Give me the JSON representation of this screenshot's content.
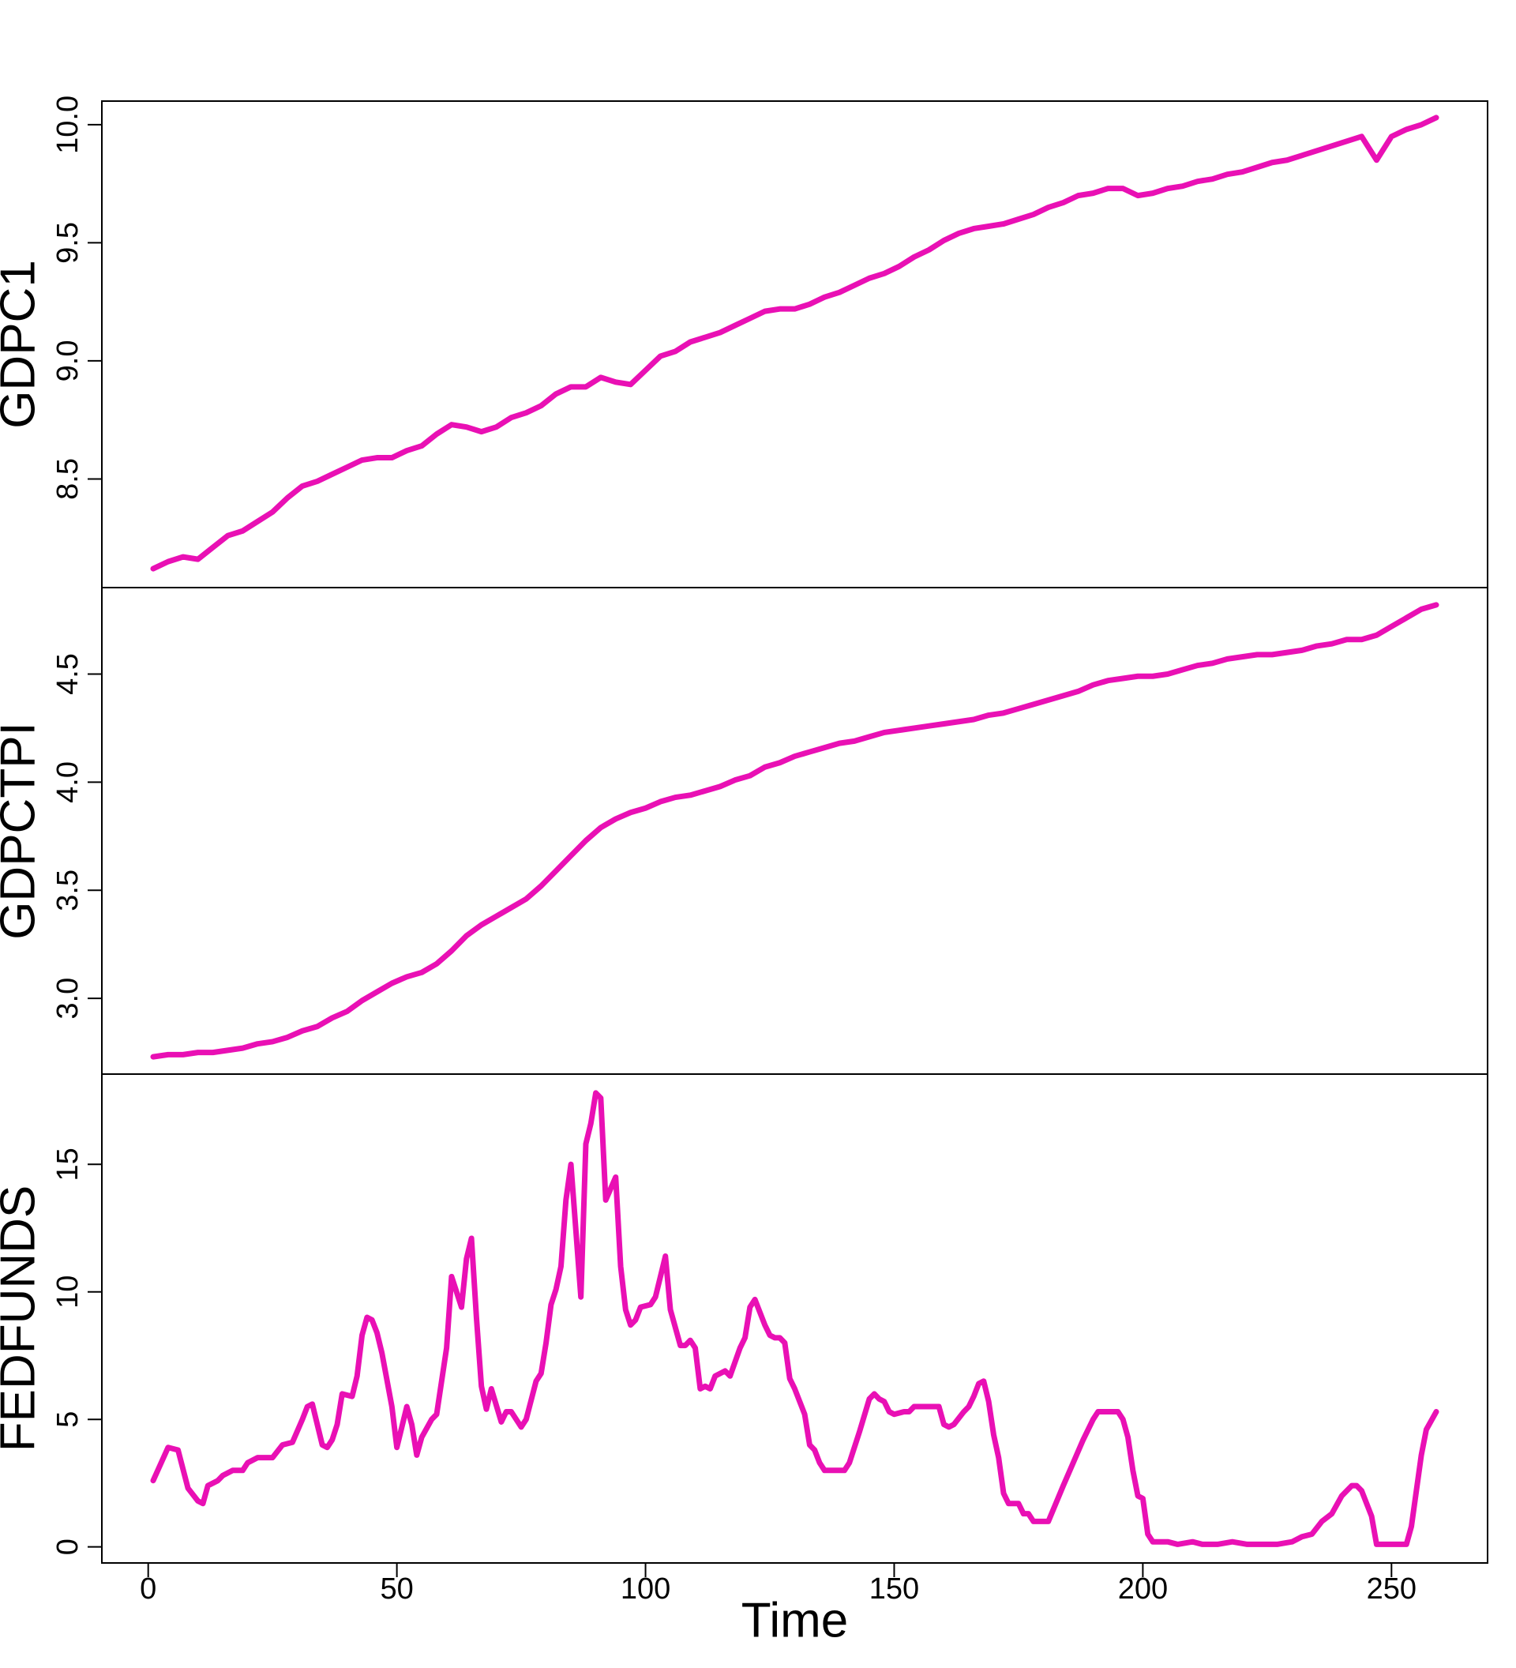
{
  "chart_data": [
    {
      "type": "line",
      "ylabel": "GDPC1",
      "color": "#e910b4",
      "xlim": [
        -9.32,
        269.32
      ],
      "ylim": [
        8.04,
        10.1
      ],
      "yticks": [
        8.5,
        {
          "value": 9.0,
          "label": "9.0"
        },
        9.5,
        {
          "value": 10.0,
          "label": "10.0"
        }
      ],
      "x": [
        1,
        4,
        7,
        10,
        13,
        16,
        19,
        22,
        25,
        28,
        31,
        34,
        37,
        40,
        43,
        46,
        49,
        52,
        55,
        58,
        61,
        64,
        67,
        70,
        73,
        76,
        79,
        82,
        85,
        88,
        91,
        94,
        97,
        100,
        103,
        106,
        109,
        112,
        115,
        118,
        121,
        124,
        127,
        130,
        133,
        136,
        139,
        142,
        145,
        148,
        151,
        154,
        157,
        160,
        163,
        166,
        169,
        172,
        175,
        178,
        181,
        184,
        187,
        190,
        193,
        196,
        199,
        202,
        205,
        208,
        211,
        214,
        217,
        220,
        223,
        226,
        229,
        232,
        235,
        238,
        241,
        244,
        247,
        250,
        253,
        256,
        259
      ],
      "values": [
        8.12,
        8.15,
        8.17,
        8.16,
        8.21,
        8.26,
        8.28,
        8.32,
        8.36,
        8.42,
        8.47,
        8.49,
        8.52,
        8.55,
        8.58,
        8.59,
        8.59,
        8.62,
        8.64,
        8.69,
        8.73,
        8.72,
        8.7,
        8.72,
        8.76,
        8.78,
        8.81,
        8.86,
        8.89,
        8.89,
        8.93,
        8.91,
        8.9,
        8.96,
        9.02,
        9.04,
        9.08,
        9.1,
        9.12,
        9.15,
        9.18,
        9.21,
        9.22,
        9.22,
        9.24,
        9.27,
        9.29,
        9.32,
        9.35,
        9.37,
        9.4,
        9.44,
        9.47,
        9.51,
        9.54,
        9.56,
        9.57,
        9.58,
        9.6,
        9.62,
        9.65,
        9.67,
        9.7,
        9.71,
        9.73,
        9.73,
        9.7,
        9.71,
        9.73,
        9.74,
        9.76,
        9.77,
        9.79,
        9.8,
        9.82,
        9.84,
        9.85,
        9.87,
        9.89,
        9.91,
        9.93,
        9.95,
        9.85,
        9.95,
        9.98,
        10.0,
        10.03
      ]
    },
    {
      "type": "line",
      "ylabel": "GDPCTPI",
      "color": "#e910b4",
      "xlim": [
        -9.32,
        269.32
      ],
      "ylim": [
        2.65,
        4.9
      ],
      "yticks": [
        {
          "value": 3.0,
          "label": "3.0"
        },
        3.5,
        {
          "value": 4.0,
          "label": "4.0"
        },
        4.5
      ],
      "x": [
        1,
        4,
        7,
        10,
        13,
        16,
        19,
        22,
        25,
        28,
        31,
        34,
        37,
        40,
        43,
        46,
        49,
        52,
        55,
        58,
        61,
        64,
        67,
        70,
        73,
        76,
        79,
        82,
        85,
        88,
        91,
        94,
        97,
        100,
        103,
        106,
        109,
        112,
        115,
        118,
        121,
        124,
        127,
        130,
        133,
        136,
        139,
        142,
        145,
        148,
        151,
        154,
        157,
        160,
        163,
        166,
        169,
        172,
        175,
        178,
        181,
        184,
        187,
        190,
        193,
        196,
        199,
        202,
        205,
        208,
        211,
        214,
        217,
        220,
        223,
        226,
        229,
        232,
        235,
        238,
        241,
        244,
        247,
        250,
        253,
        256,
        259
      ],
      "values": [
        2.73,
        2.74,
        2.74,
        2.75,
        2.75,
        2.76,
        2.77,
        2.79,
        2.8,
        2.82,
        2.85,
        2.87,
        2.91,
        2.94,
        2.99,
        3.03,
        3.07,
        3.1,
        3.12,
        3.16,
        3.22,
        3.29,
        3.34,
        3.38,
        3.42,
        3.46,
        3.52,
        3.59,
        3.66,
        3.73,
        3.79,
        3.83,
        3.86,
        3.88,
        3.91,
        3.93,
        3.94,
        3.96,
        3.98,
        4.01,
        4.03,
        4.07,
        4.09,
        4.12,
        4.14,
        4.16,
        4.18,
        4.19,
        4.21,
        4.23,
        4.24,
        4.25,
        4.26,
        4.27,
        4.28,
        4.29,
        4.31,
        4.32,
        4.34,
        4.36,
        4.38,
        4.4,
        4.42,
        4.45,
        4.47,
        4.48,
        4.49,
        4.49,
        4.5,
        4.52,
        4.54,
        4.55,
        4.57,
        4.58,
        4.59,
        4.59,
        4.6,
        4.61,
        4.63,
        4.64,
        4.66,
        4.66,
        4.68,
        4.72,
        4.76,
        4.8,
        4.82
      ]
    },
    {
      "type": "line",
      "ylabel": "FEDFUNDS",
      "xlabel": "Time",
      "color": "#e910b4",
      "xlim": [
        -9.32,
        269.32
      ],
      "ylim": [
        -0.63,
        18.54
      ],
      "yticks": [
        0,
        5,
        10,
        15
      ],
      "xticks": [
        0,
        50,
        100,
        150,
        200,
        250
      ],
      "x": [
        1,
        4,
        6,
        8,
        10,
        11,
        12,
        14,
        15,
        17,
        19,
        20,
        22,
        25,
        27,
        29,
        31,
        32,
        33,
        35,
        36,
        37,
        38,
        39,
        41,
        42,
        43,
        44,
        45,
        46,
        47,
        49,
        50,
        52,
        53,
        54,
        55,
        57,
        58,
        60,
        61,
        62,
        63,
        64,
        65,
        66,
        67,
        68,
        69,
        71,
        72,
        73,
        75,
        76,
        78,
        79,
        80,
        81,
        82,
        83,
        84,
        85,
        87,
        88,
        89,
        90,
        91,
        92,
        94,
        95,
        96,
        97,
        98,
        99,
        101,
        102,
        104,
        105,
        107,
        108,
        109,
        110,
        111,
        112,
        113,
        114,
        116,
        117,
        119,
        120,
        121,
        122,
        124,
        125,
        126,
        127,
        128,
        129,
        130,
        132,
        133,
        134,
        135,
        136,
        139,
        140,
        141,
        143,
        145,
        146,
        147,
        148,
        149,
        150,
        152,
        153,
        154,
        156,
        158,
        159,
        160,
        161,
        162,
        164,
        165,
        166,
        167,
        168,
        169,
        170,
        171,
        172,
        173,
        175,
        176,
        177,
        178,
        181,
        184,
        186,
        188,
        190,
        191,
        195,
        196,
        197,
        198,
        199,
        200,
        201,
        202,
        205,
        207,
        210,
        212,
        215,
        218,
        221,
        227,
        230,
        232,
        234,
        236,
        238,
        240,
        242,
        243,
        244,
        246,
        247,
        250,
        253,
        254,
        256,
        257,
        259
      ],
      "values": [
        2.6,
        3.9,
        3.8,
        2.3,
        1.8,
        1.7,
        2.4,
        2.6,
        2.8,
        3.0,
        3.0,
        3.3,
        3.5,
        3.5,
        4.0,
        4.1,
        5.0,
        5.5,
        5.6,
        4.0,
        3.9,
        4.2,
        4.8,
        6.0,
        5.9,
        6.7,
        8.3,
        9.0,
        8.9,
        8.4,
        7.6,
        5.5,
        3.9,
        5.5,
        4.8,
        3.6,
        4.3,
        5.0,
        5.2,
        7.8,
        10.6,
        10.0,
        9.4,
        11.3,
        12.1,
        9.0,
        6.3,
        5.4,
        6.2,
        4.9,
        5.3,
        5.3,
        4.7,
        5.0,
        6.5,
        6.8,
        8.0,
        9.5,
        10.1,
        11.0,
        13.6,
        15.0,
        9.8,
        15.8,
        16.6,
        17.8,
        17.6,
        13.6,
        14.5,
        11.0,
        9.3,
        8.7,
        8.9,
        9.4,
        9.5,
        9.8,
        11.4,
        9.3,
        7.9,
        7.9,
        8.1,
        7.8,
        6.2,
        6.3,
        6.2,
        6.7,
        6.9,
        6.7,
        7.8,
        8.2,
        9.4,
        9.7,
        8.7,
        8.3,
        8.2,
        8.2,
        8.0,
        6.6,
        6.2,
        5.2,
        4.0,
        3.8,
        3.3,
        3.0,
        3.0,
        3.0,
        3.3,
        4.5,
        5.8,
        6.0,
        5.8,
        5.7,
        5.3,
        5.2,
        5.3,
        5.3,
        5.5,
        5.5,
        5.5,
        5.5,
        4.8,
        4.7,
        4.8,
        5.3,
        5.5,
        5.9,
        6.4,
        6.5,
        5.7,
        4.4,
        3.5,
        2.1,
        1.7,
        1.7,
        1.3,
        1.3,
        1.0,
        1.0,
        2.4,
        3.3,
        4.2,
        5.0,
        5.3,
        5.3,
        5.0,
        4.3,
        3.0,
        2.0,
        1.9,
        0.5,
        0.2,
        0.2,
        0.1,
        0.2,
        0.1,
        0.1,
        0.2,
        0.1,
        0.1,
        0.2,
        0.4,
        0.5,
        1.0,
        1.3,
        2.0,
        2.4,
        2.4,
        2.2,
        1.2,
        0.1,
        0.1,
        0.1,
        0.8,
        3.6,
        4.6,
        5.3
      ]
    }
  ]
}
